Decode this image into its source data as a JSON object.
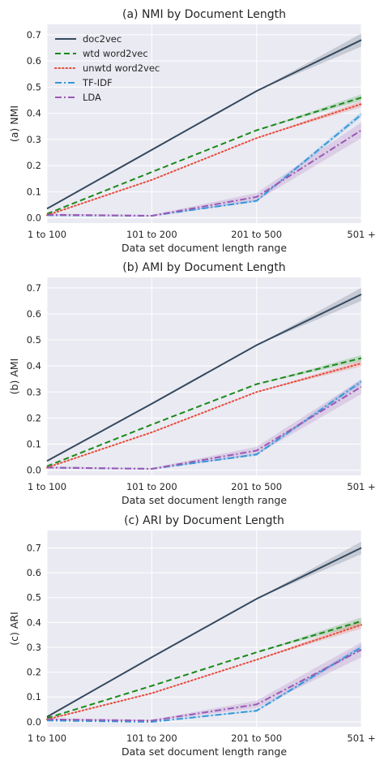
{
  "chart_data": [
    {
      "type": "line",
      "title": "(a) NMI by Document Length",
      "xlabel": "Data set document length range",
      "ylabel": "(a) NMI",
      "categories": [
        "1 to 100",
        "101 to 200",
        "201 to 500",
        "501 +"
      ],
      "ylim": [
        -0.02,
        0.74
      ],
      "yticks": [
        "0.0",
        "0.1",
        "0.2",
        "0.3",
        "0.4",
        "0.5",
        "0.6",
        "0.7"
      ],
      "grid": true,
      "legend": "top-left",
      "series": [
        {
          "name": "doc2vec",
          "values": [
            0.035,
            0.26,
            0.485,
            0.68
          ],
          "ci": [
            0.0,
            0.0,
            0.0,
            0.025
          ],
          "color": "#34495e",
          "dash": ""
        },
        {
          "name": "wtd word2vec",
          "values": [
            0.015,
            0.175,
            0.335,
            0.46
          ],
          "ci": [
            0.0,
            0.0,
            0.0,
            0.012
          ],
          "color": "#1a8a1a",
          "dash": "7 4"
        },
        {
          "name": "unwtd word2vec",
          "values": [
            0.01,
            0.145,
            0.305,
            0.435
          ],
          "ci": [
            0.0,
            0.0,
            0.0,
            0.012
          ],
          "color": "#e74c3c",
          "dash": "1.5 3"
        },
        {
          "name": "TF-IDF",
          "values": [
            0.01,
            0.008,
            0.065,
            0.395
          ],
          "ci": [
            0.0,
            0.0,
            0.005,
            0.01
          ],
          "color": "#3498db",
          "dash": "8 3 2 3"
        },
        {
          "name": "LDA",
          "values": [
            0.012,
            0.008,
            0.08,
            0.335
          ],
          "ci": [
            0.004,
            0.003,
            0.015,
            0.03
          ],
          "color": "#9b59b6",
          "dash": "8 3 2 3"
        }
      ]
    },
    {
      "type": "line",
      "title": "(b) AMI by Document Length",
      "xlabel": "Data set document length range",
      "ylabel": "(b) AMI",
      "categories": [
        "1 to 100",
        "101 to 200",
        "201 to 500",
        "501 +"
      ],
      "ylim": [
        -0.02,
        0.74
      ],
      "yticks": [
        "0.0",
        "0.1",
        "0.2",
        "0.3",
        "0.4",
        "0.5",
        "0.6",
        "0.7"
      ],
      "grid": true,
      "series": [
        {
          "name": "doc2vec",
          "values": [
            0.035,
            0.255,
            0.48,
            0.675
          ],
          "ci": [
            0.0,
            0.0,
            0.0,
            0.025
          ],
          "color": "#34495e",
          "dash": ""
        },
        {
          "name": "wtd word2vec",
          "values": [
            0.015,
            0.175,
            0.33,
            0.43
          ],
          "ci": [
            0.0,
            0.0,
            0.0,
            0.012
          ],
          "color": "#1a8a1a",
          "dash": "7 4"
        },
        {
          "name": "unwtd word2vec",
          "values": [
            0.01,
            0.145,
            0.3,
            0.41
          ],
          "ci": [
            0.0,
            0.0,
            0.0,
            0.012
          ],
          "color": "#e74c3c",
          "dash": "1.5 3"
        },
        {
          "name": "TF-IDF",
          "values": [
            0.01,
            0.005,
            0.06,
            0.34
          ],
          "ci": [
            0.0,
            0.0,
            0.005,
            0.01
          ],
          "color": "#3498db",
          "dash": "8 3 2 3"
        },
        {
          "name": "LDA",
          "values": [
            0.01,
            0.005,
            0.075,
            0.32
          ],
          "ci": [
            0.004,
            0.003,
            0.015,
            0.028
          ],
          "color": "#9b59b6",
          "dash": "8 3 2 3"
        }
      ]
    },
    {
      "type": "line",
      "title": "(c) ARI by Document Length",
      "xlabel": "Data set document length range",
      "ylabel": "(c) ARI",
      "categories": [
        "1 to 100",
        "101 to 200",
        "201 to 500",
        "501 +"
      ],
      "ylim": [
        -0.02,
        0.77
      ],
      "yticks": [
        "0.0",
        "0.1",
        "0.2",
        "0.3",
        "0.4",
        "0.5",
        "0.6",
        "0.7"
      ],
      "grid": true,
      "series": [
        {
          "name": "doc2vec",
          "values": [
            0.02,
            0.26,
            0.495,
            0.7
          ],
          "ci": [
            0.0,
            0.0,
            0.0,
            0.025
          ],
          "color": "#34495e",
          "dash": ""
        },
        {
          "name": "wtd word2vec",
          "values": [
            0.015,
            0.145,
            0.28,
            0.405
          ],
          "ci": [
            0.0,
            0.0,
            0.0,
            0.015
          ],
          "color": "#1a8a1a",
          "dash": "7 4"
        },
        {
          "name": "unwtd word2vec",
          "values": [
            0.01,
            0.115,
            0.25,
            0.39
          ],
          "ci": [
            0.0,
            0.0,
            0.0,
            0.015
          ],
          "color": "#e74c3c",
          "dash": "1.5 3"
        },
        {
          "name": "TF-IDF",
          "values": [
            0.005,
            0.0,
            0.045,
            0.3
          ],
          "ci": [
            0.0,
            0.0,
            0.005,
            0.01
          ],
          "color": "#3498db",
          "dash": "8 3 2 3"
        },
        {
          "name": "LDA",
          "values": [
            0.01,
            0.005,
            0.07,
            0.29
          ],
          "ci": [
            0.004,
            0.003,
            0.015,
            0.03
          ],
          "color": "#9b59b6",
          "dash": "8 3 2 3"
        }
      ]
    }
  ]
}
